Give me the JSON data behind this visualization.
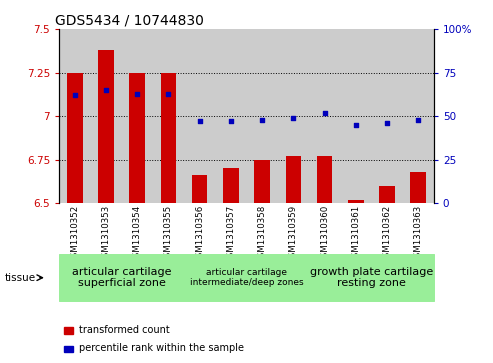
{
  "title": "GDS5434 / 10744830",
  "samples": [
    "GSM1310352",
    "GSM1310353",
    "GSM1310354",
    "GSM1310355",
    "GSM1310356",
    "GSM1310357",
    "GSM1310358",
    "GSM1310359",
    "GSM1310360",
    "GSM1310361",
    "GSM1310362",
    "GSM1310363"
  ],
  "transformed_count": [
    7.25,
    7.38,
    7.25,
    7.25,
    6.66,
    6.7,
    6.75,
    6.77,
    6.77,
    6.52,
    6.6,
    6.68
  ],
  "percentile_rank": [
    62,
    65,
    63,
    63,
    47,
    47,
    48,
    49,
    52,
    45,
    46,
    48
  ],
  "ylim_left": [
    6.5,
    7.5
  ],
  "ylim_right": [
    0,
    100
  ],
  "yticks_left": [
    6.5,
    6.75,
    7.0,
    7.25,
    7.5
  ],
  "yticks_right": [
    0,
    25,
    50,
    75,
    100
  ],
  "ytick_labels_left": [
    "6.5",
    "6.75",
    "7",
    "7.25",
    "7.5"
  ],
  "ytick_labels_right": [
    "0",
    "25",
    "50",
    "75",
    "100%"
  ],
  "hlines": [
    6.75,
    7.0,
    7.25
  ],
  "bar_color": "#cc0000",
  "dot_color": "#0000bb",
  "bar_bottom": 6.5,
  "tissue_groups": [
    {
      "label": "articular cartilage\nsuperficial zone",
      "start": 0,
      "end": 3,
      "fontsize": 8
    },
    {
      "label": "articular cartilage\nintermediate/deep zones",
      "start": 4,
      "end": 7,
      "fontsize": 6.5
    },
    {
      "label": "growth plate cartilage\nresting zone",
      "start": 8,
      "end": 11,
      "fontsize": 8
    }
  ],
  "tissue_bg_color": "#99ee99",
  "sample_bg_color": "#cccccc",
  "tissue_label": "tissue",
  "legend_bar_label": "transformed count",
  "legend_dot_label": "percentile rank within the sample",
  "title_fontsize": 10,
  "tick_fontsize": 7.5,
  "sample_fontsize": 6.2,
  "bar_width": 0.5
}
